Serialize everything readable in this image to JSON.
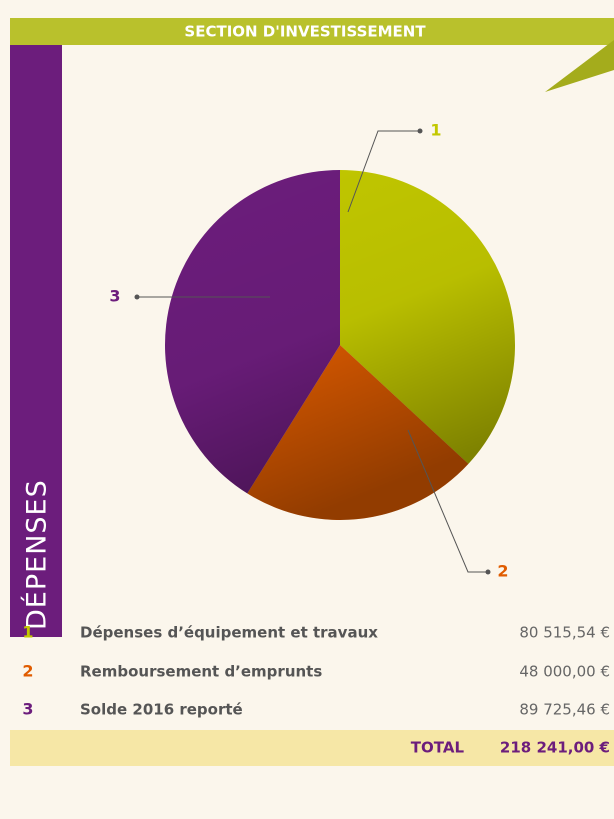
{
  "chart_data": {
    "type": "pie",
    "title": "SECTION D'INVESTISSEMENT",
    "side_label": "DÉPENSES",
    "labels": [
      "1",
      "2",
      "3"
    ],
    "categories": [
      "Dépenses d’équipement et travaux",
      "Remboursement d’emprunts",
      "Solde 2016 reporté"
    ],
    "values": [
      80515.54,
      48000.0,
      89725.46
    ],
    "value_labels": [
      "80 515,54 €",
      "48 000,00 €",
      "89 725,46 €"
    ],
    "colors": [
      "#c2c800",
      "#e05c00",
      "#6c1d7c"
    ],
    "total_label": "TOTAL",
    "total": 218241.0,
    "total_value_label": "218 241,00 €"
  }
}
